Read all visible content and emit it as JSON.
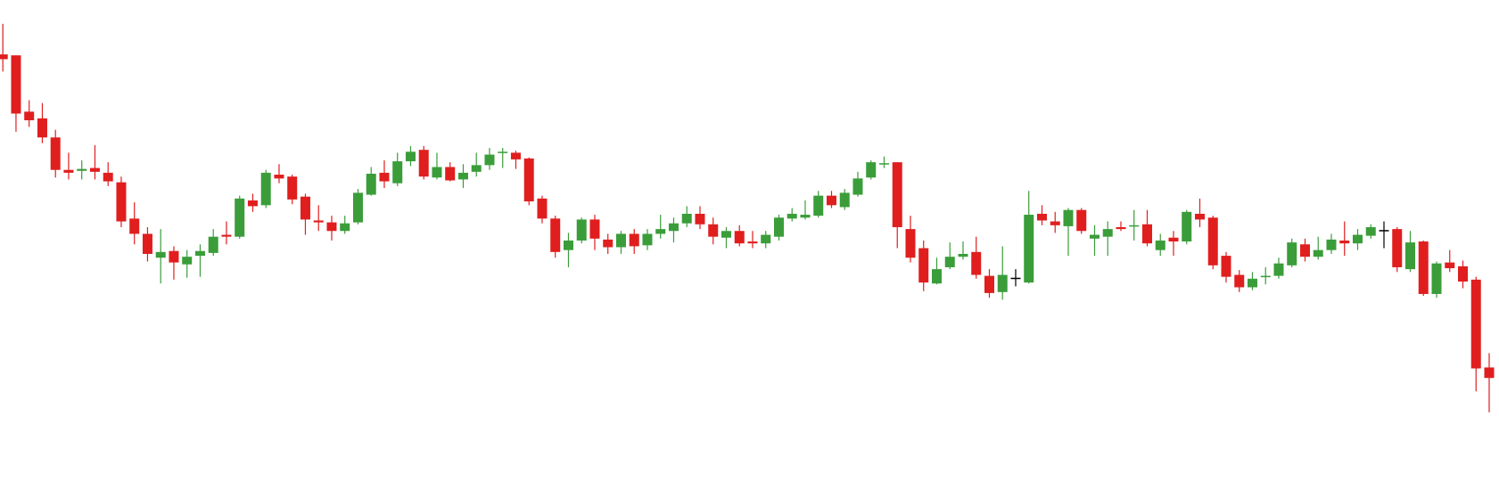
{
  "chart_data": {
    "type": "candlestick",
    "ylim": [
      0,
      505
    ],
    "up_color": "#3a9d3a",
    "down_color": "#e01e1e",
    "doji_color": "#000000",
    "open": [
      448,
      447,
      388,
      381,
      361,
      327,
      326,
      329,
      324,
      314,
      276,
      260,
      235,
      242,
      228,
      237,
      240,
      259,
      257,
      295,
      290,
      322,
      320,
      299,
      274,
      272,
      263,
      272,
      301,
      324,
      313,
      336,
      348,
      319,
      330,
      317,
      325,
      332,
      345,
      345,
      339,
      297,
      276,
      243,
      253,
      275,
      254,
      246,
      260,
      248,
      260,
      263,
      271,
      281,
      270,
      256,
      263,
      252,
      250,
      257,
      276,
      277,
      279,
      300,
      288,
      301,
      319,
      333,
      335,
      265,
      245,
      208,
      225,
      236,
      241,
      216,
      199,
      214,
      209,
      281,
      273,
      268,
      285,
      255,
      257,
      267,
      268,
      270,
      243,
      256,
      252,
      281,
      277,
      237,
      217,
      204,
      215,
      216,
      227,
      249,
      236,
      243,
      253,
      250,
      258,
      264,
      265,
      223,
      252,
      197,
      230,
      226,
      212,
      120
    ],
    "high": [
      480,
      447,
      400,
      397,
      369,
      345,
      337,
      353,
      335,
      320,
      293,
      267,
      265,
      247,
      243,
      249,
      265,
      273,
      300,
      302,
      327,
      333,
      322,
      302,
      290,
      279,
      279,
      307,
      330,
      337,
      345,
      352,
      352,
      345,
      335,
      333,
      345,
      350,
      350,
      347,
      340,
      300,
      279,
      261,
      277,
      280,
      260,
      263,
      265,
      265,
      280,
      277,
      289,
      289,
      277,
      267,
      269,
      263,
      263,
      280,
      287,
      295,
      305,
      305,
      307,
      325,
      337,
      341,
      335,
      279,
      253,
      235,
      251,
      252,
      257,
      223,
      247,
      223,
      305,
      290,
      283,
      287,
      287,
      269,
      273,
      273,
      285,
      285,
      260,
      263,
      285,
      297,
      279,
      241,
      222,
      220,
      225,
      235,
      255,
      255,
      257,
      260,
      273,
      265,
      270,
      273,
      267,
      263,
      253,
      231,
      243,
      232,
      215,
      135
    ],
    "low": [
      430,
      367,
      372,
      355,
      319,
      317,
      317,
      317,
      310,
      267,
      249,
      231,
      208,
      212,
      214,
      215,
      237,
      249,
      255,
      283,
      287,
      313,
      291,
      259,
      263,
      253,
      260,
      270,
      300,
      308,
      310,
      331,
      317,
      317,
      315,
      308,
      320,
      327,
      329,
      328,
      290,
      271,
      235,
      225,
      250,
      243,
      239,
      239,
      239,
      243,
      255,
      251,
      267,
      265,
      249,
      245,
      247,
      245,
      245,
      253,
      273,
      275,
      277,
      287,
      285,
      299,
      317,
      329,
      245,
      230,
      200,
      207,
      223,
      233,
      213,
      193,
      191,
      205,
      208,
      269,
      261,
      237,
      260,
      237,
      237,
      263,
      253,
      247,
      237,
      237,
      249,
      267,
      223,
      209,
      199,
      201,
      207,
      213,
      225,
      231,
      233,
      239,
      237,
      243,
      255,
      245,
      220,
      220,
      195,
      193,
      220,
      203,
      95,
      73
    ],
    "close": [
      443,
      386,
      379,
      361,
      327,
      324,
      328,
      325,
      315,
      273,
      260,
      239,
      241,
      230,
      236,
      242,
      257,
      257,
      297,
      289,
      324,
      318,
      296,
      275,
      272,
      263,
      271,
      303,
      323,
      315,
      336,
      346,
      320,
      330,
      316,
      324,
      332,
      343,
      346,
      338,
      294,
      276,
      241,
      253,
      275,
      255,
      246,
      260,
      247,
      260,
      265,
      271,
      281,
      270,
      257,
      263,
      250,
      250,
      259,
      277,
      281,
      280,
      300,
      290,
      303,
      318,
      335,
      334,
      267,
      235,
      209,
      223,
      236,
      239,
      217,
      198,
      217,
      214,
      280,
      274,
      269,
      285,
      263,
      259,
      265,
      265,
      269,
      250,
      253,
      252,
      283,
      275,
      227,
      215,
      204,
      213,
      216,
      229,
      251,
      236,
      243,
      254,
      250,
      259,
      267,
      264,
      225,
      251,
      197,
      229,
      224,
      210,
      119,
      109
    ]
  }
}
